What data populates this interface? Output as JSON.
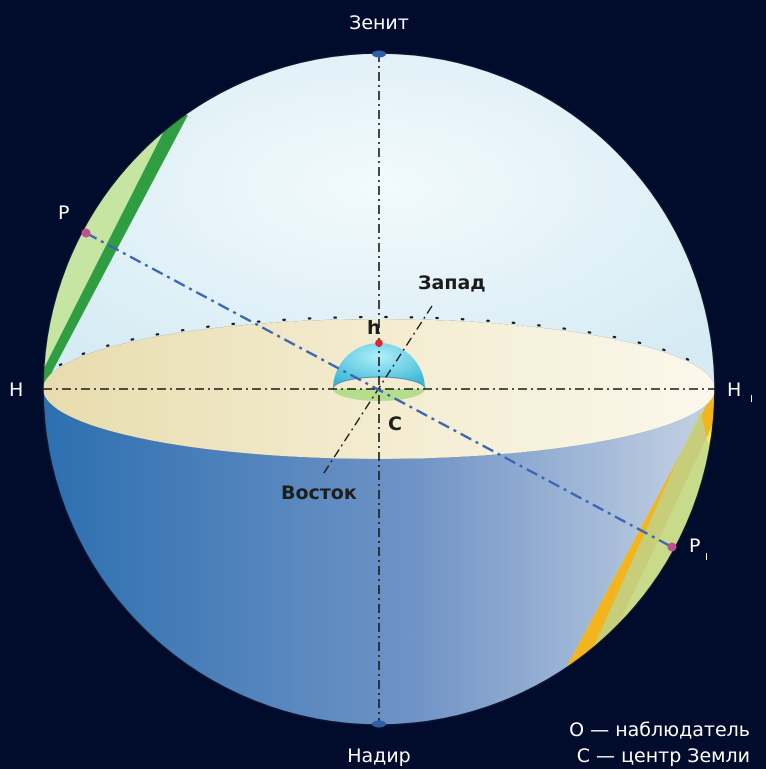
{
  "labels": {
    "zenith": "Зенит",
    "nadir": "Надир",
    "h_left": "Н",
    "h_right": "Н",
    "h_right_sub": "I",
    "west": "Запад",
    "east": "Восток",
    "altitude": "h",
    "center": "С",
    "pole_top": "Р",
    "pole_bottom": "Р",
    "pole_bottom_sub": "I"
  },
  "legend": {
    "observer": "О — наблюдатель",
    "center": "С — центр Земли"
  },
  "colors": {
    "background": "#010b2b",
    "upper_hemisphere": "#e6f4f9",
    "horizon_plane": "#efe6c4",
    "lower_hemisphere_dark": "#2a6eb0",
    "lower_hemisphere_light": "#bcc8de",
    "axis_line": "#3a66b6",
    "pole_marker": "#c0508e",
    "altitude_marker": "#e0262b",
    "left_band_light": "#bfe29a",
    "left_band_dark": "#2f9e42",
    "right_band_yellow": "#f4ee60",
    "right_band_orange": "#f2b51e"
  }
}
